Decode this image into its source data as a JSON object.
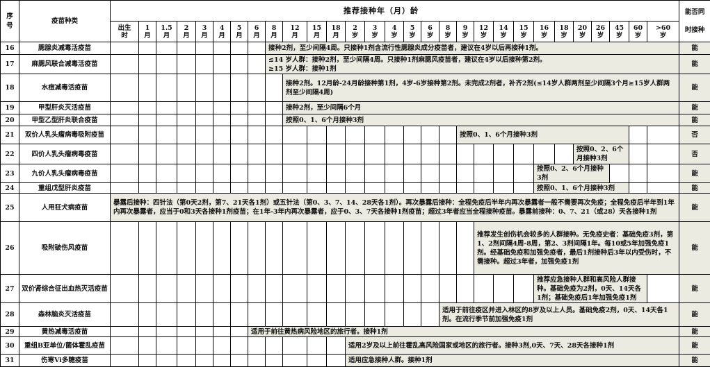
{
  "header": {
    "no_label": "序\n号",
    "vaccine_label": "疫苗种类",
    "age_title": "推荐接种年（月）龄",
    "concurrent_label": "能否同\n时接种",
    "ages": [
      "出生\n时",
      "1\n月",
      "1.5\n月",
      "2\n月",
      "3\n月",
      "4\n月",
      "5\n月",
      "6\n月",
      "8\n月",
      "12\n月",
      "15\n月",
      "18\n月",
      "2\n岁",
      "3\n岁",
      "4\n岁",
      "5\n岁",
      "6\n岁",
      "8\n岁",
      "9\n岁",
      "12\n岁",
      "14\n岁",
      "15\n岁",
      "16\n岁",
      "18\n岁",
      "20\n岁",
      "26\n岁",
      "45\n岁",
      "60\n岁",
      ">60\n岁"
    ]
  },
  "shade_color": "#ecebe2",
  "rows": [
    {
      "no": "16",
      "name": "腮腺炎减毒活疫苗",
      "start_age": "8月",
      "end_age": ">60岁",
      "text": "接种2剂，至少间隔4周。只接种1剂含流行性腮腺炎成分疫苗者，建议在4岁以后再接种1剂。",
      "concurrent": "能"
    },
    {
      "no": "17",
      "name": "麻腮风联合减毒活疫苗",
      "start_age": "8月",
      "end_age": ">60岁",
      "text": "≤14 岁人群：接种2剂，至少间隔4周。只接种1剂麻腮风疫苗者，建议在4岁以后接种第2剂。\n≥15 岁人群：接种1剂",
      "concurrent": "能"
    },
    {
      "no": "18",
      "name": "水痘减毒活疫苗",
      "start_age": "12月",
      "end_age": ">60岁",
      "text": "接种2剂。12月龄-24月龄接种第1剂，4岁-6岁接种第2剂。未完成2剂者，补齐2剂(≤14岁人群两剂至少间隔3个月≥15岁人群两剂至少间隔4周)",
      "concurrent": "能"
    },
    {
      "no": "19",
      "name": "甲型肝炎灭活疫苗",
      "start_age": "12月",
      "end_age": ">60岁",
      "text": "接种2剂，至少间隔6个月",
      "concurrent": "能"
    },
    {
      "no": "20",
      "name": "甲型乙型肝炎联合疫苗",
      "start_age": "12月",
      "end_age": ">60岁",
      "text": "按照0、1、6个月接种3剂",
      "concurrent": "能"
    },
    {
      "no": "21",
      "name": "双价人乳头瘤病毒吸附疫苗",
      "start_age": "9岁",
      "end_age": "45岁",
      "text": "按照0、1、6个月接种3剂",
      "concurrent": "否"
    },
    {
      "no": "22",
      "name": "四价人乳头瘤病毒疫苗",
      "start_age": "20岁",
      "end_age": "45岁",
      "text": "按照0、2、6个月接种3剂",
      "concurrent": "否"
    },
    {
      "no": "23",
      "name": "九价人乳头瘤病毒疫苗",
      "start_age": "16岁",
      "end_age": "26岁",
      "text": "按照0、2、6个月接种3剂",
      "concurrent": "能"
    },
    {
      "no": "24",
      "name": "重组戊型肝炎疫苗",
      "start_age": "16岁",
      "end_age": "45岁",
      "text": "按照0、1、6个月接种3剂",
      "concurrent": "能"
    },
    {
      "no": "25",
      "name": "人用狂犬病疫苗",
      "start_age": "出生时",
      "end_age": ">60岁",
      "text": "暴露后接种：四针法（第0天2剂，第7、21天各1剂）或五针法（第0、3、7、14、28天各1剂）。再次暴露后接种：全程免疫后半年内再次暴露者一般不需要再次免疫；全程免疫后半年到1年内再次暴露者，应当于0和3天各接种1剂疫苗；在1年-3年内再次暴露者，应于0、3、7天各接种1剂疫苗；超过3年者应当全程接种疫苗。暴露前接种：0、7、21（或28）天各接种1剂",
      "concurrent": "能"
    },
    {
      "no": "26",
      "name": "吸附破伤风疫苗",
      "start_age": "12岁",
      "end_age": ">60岁",
      "text": "推荐发生创伤机会较多的人群接种。无免疫史者：基础免疫3剂，第1、2剂间隔4周-8周，第2、3剂间隔1年。每10或5年加强免疫1剂。经基础免疫和加强免疫者，最后1剂接种后3年以内受伤时，不需接种。超过3年者，加强免疫1剂",
      "concurrent": "能"
    },
    {
      "no": "27",
      "name": "双价肾综合征出血热灭活疫苗",
      "start_age": "16岁",
      "end_age": "60岁",
      "text": "推荐应急接种人群和高风险人群接种。基础免疫为2剂，0天、14天各1剂；基础免疫后1年加强免疫1剂",
      "concurrent": "能"
    },
    {
      "no": "28",
      "name": "森林脑炎灭活疫苗",
      "start_age": "8岁",
      "end_age": ">60岁",
      "text": "适用于前往疫区并进入林区的8岁及以上人员。基础免疫2剂，0天、14天各1剂。在流行季节前加强免疫1剂",
      "concurrent": "能"
    },
    {
      "no": "29",
      "name": "黄热减毒活疫苗",
      "start_age": "6月",
      "end_age": ">60岁",
      "text": "适用于前往黄热病风险地区的旅行者。接种1剂",
      "concurrent": "能"
    },
    {
      "no": "30",
      "name": "重组B亚单位/菌体霍乱疫苗",
      "start_age": "2岁",
      "end_age": ">60岁",
      "text": "适用2岁及以上前往霍乱高风险国家或地区的旅行者。接种3剂,0天、7天、28天各接种1剂",
      "concurrent": "能"
    },
    {
      "no": "31",
      "name": "伤寒Vi多糖疫苗",
      "start_age": "2岁",
      "end_age": ">60岁",
      "text": "适用应急接种人群。接种1剂",
      "concurrent": "能"
    }
  ]
}
